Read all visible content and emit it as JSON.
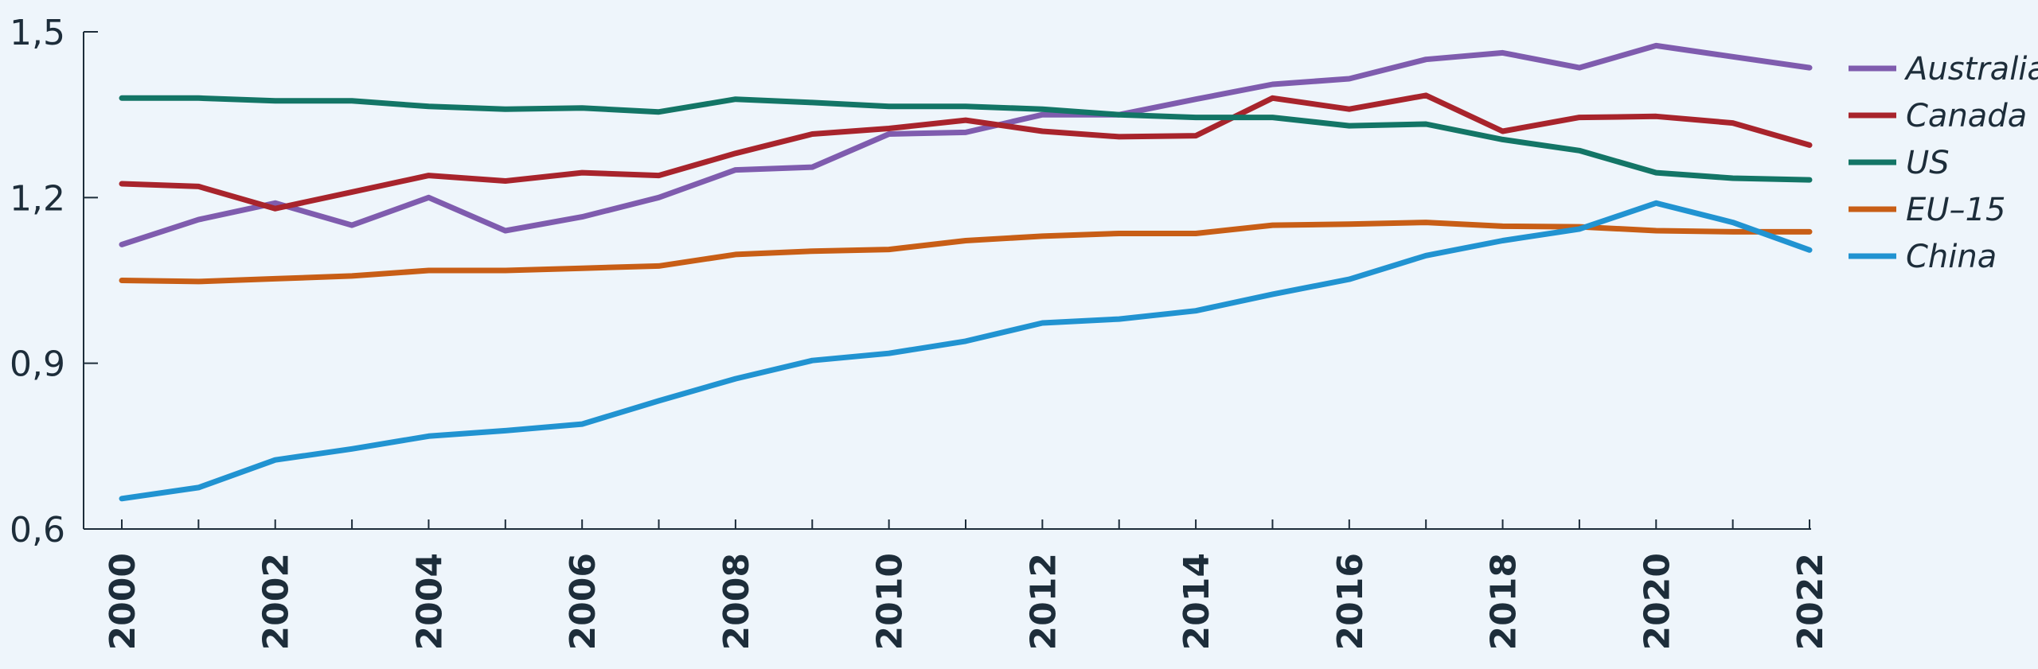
{
  "chart_data": {
    "type": "line",
    "title": "",
    "xlabel": "",
    "ylabel": "",
    "x": [
      2000,
      2001,
      2002,
      2003,
      2004,
      2005,
      2006,
      2007,
      2008,
      2009,
      2010,
      2011,
      2012,
      2013,
      2014,
      2015,
      2016,
      2017,
      2018,
      2019,
      2020,
      2021,
      2022
    ],
    "x_tick_labels": [
      "2000",
      "2002",
      "2004",
      "2006",
      "2008",
      "2010",
      "2012",
      "2014",
      "2016",
      "2018",
      "2020",
      "2022"
    ],
    "y_tick_labels": [
      "0,6",
      "0,9",
      "1,2",
      "1,5"
    ],
    "y_ticks": [
      0.6,
      0.9,
      1.2,
      1.5
    ],
    "ylim": [
      0.6,
      1.5
    ],
    "grid": false,
    "legend_position": "right",
    "series": [
      {
        "name": "Australia",
        "color": "#7f5cae",
        "values": [
          1.115,
          1.16,
          1.19,
          1.15,
          1.2,
          1.14,
          1.165,
          1.2,
          1.25,
          1.255,
          1.315,
          1.318,
          1.35,
          1.35,
          1.378,
          1.405,
          1.415,
          1.45,
          1.462,
          1.435,
          1.475,
          1.455,
          1.435
        ]
      },
      {
        "name": "Canada",
        "color": "#a8242c",
        "values": [
          1.225,
          1.22,
          1.18,
          1.21,
          1.24,
          1.23,
          1.245,
          1.24,
          1.28,
          1.315,
          1.325,
          1.34,
          1.32,
          1.31,
          1.312,
          1.38,
          1.36,
          1.385,
          1.32,
          1.345,
          1.347,
          1.335,
          1.295
        ]
      },
      {
        "name": "US",
        "color": "#137566",
        "values": [
          1.38,
          1.38,
          1.375,
          1.375,
          1.365,
          1.36,
          1.362,
          1.355,
          1.378,
          1.372,
          1.365,
          1.365,
          1.36,
          1.35,
          1.345,
          1.345,
          1.33,
          1.333,
          1.305,
          1.285,
          1.245,
          1.235,
          1.232
        ]
      },
      {
        "name": "EU–15",
        "color": "#c85e16",
        "values": [
          1.05,
          1.048,
          1.053,
          1.058,
          1.068,
          1.068,
          1.072,
          1.076,
          1.097,
          1.103,
          1.106,
          1.122,
          1.13,
          1.135,
          1.135,
          1.15,
          1.152,
          1.155,
          1.148,
          1.147,
          1.14,
          1.138,
          1.138
        ]
      },
      {
        "name": "China",
        "color": "#2193d1",
        "values": [
          0.655,
          0.675,
          0.725,
          0.745,
          0.768,
          0.778,
          0.79,
          0.832,
          0.872,
          0.905,
          0.918,
          0.94,
          0.973,
          0.98,
          0.995,
          1.025,
          1.052,
          1.095,
          1.122,
          1.143,
          1.19,
          1.155,
          1.105
        ]
      }
    ]
  }
}
